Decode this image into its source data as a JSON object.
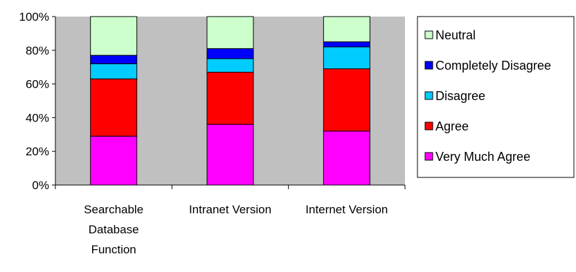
{
  "chart_data": {
    "type": "bar",
    "stacked": true,
    "percent_stacked": true,
    "categories": [
      [
        "Searchable",
        "Database",
        "Function"
      ],
      [
        "Intranet Version"
      ],
      [
        "Internet Version"
      ]
    ],
    "series": [
      {
        "name": "Very Much Agree",
        "color": "#ff00ff",
        "values": [
          29,
          36,
          32
        ]
      },
      {
        "name": "Agree",
        "color": "#ff0000",
        "values": [
          34,
          31,
          37
        ]
      },
      {
        "name": "Disagree",
        "color": "#00ccff",
        "values": [
          9,
          8,
          13
        ]
      },
      {
        "name": "Completely Disagree",
        "color": "#0000ff",
        "values": [
          5,
          6,
          3
        ]
      },
      {
        "name": "Neutral",
        "color": "#ccffcc",
        "values": [
          23,
          19,
          15
        ]
      }
    ],
    "ylim": [
      0,
      100
    ],
    "yticks": [
      "0%",
      "20%",
      "40%",
      "60%",
      "80%",
      "100%"
    ],
    "grid": false,
    "plot_background": "#c0c0c0",
    "legend_position": "right",
    "legend_order": [
      "Neutral",
      "Completely Disagree",
      "Disagree",
      "Agree",
      "Very Much Agree"
    ]
  }
}
